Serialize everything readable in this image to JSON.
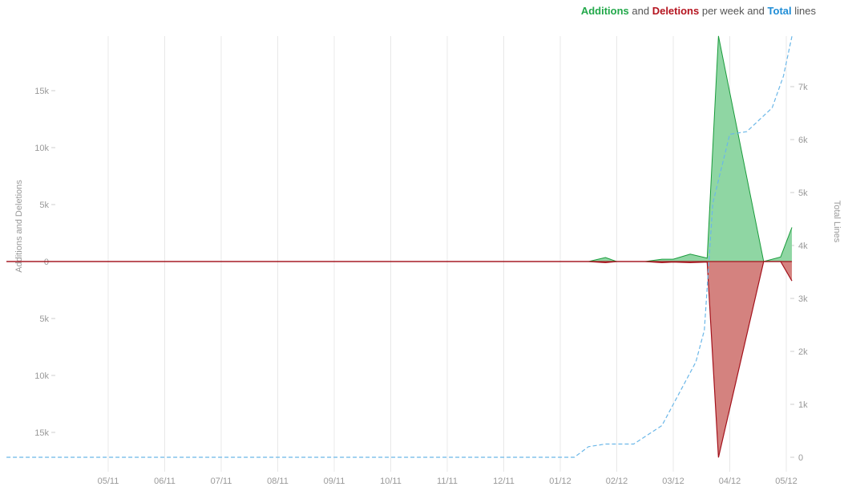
{
  "legend": {
    "additions": "Additions",
    "and1": "and",
    "deletions": "Deletions",
    "per_week": "per week and",
    "total": "Total",
    "lines": "lines"
  },
  "colors": {
    "additions_stroke": "#1a9b3c",
    "additions_fill": "#8fd6a3",
    "deletions_stroke": "#a3121c",
    "deletions_fill": "#d4827f",
    "total_line": "#6bb7e8",
    "grid": "#e8e8e8",
    "legend_additions": "#22a84a",
    "legend_deletions": "#b5141f",
    "legend_total": "#1f8dd6"
  },
  "chart_data": {
    "type": "area",
    "y_left_label": "Additions and Deletions",
    "y_right_label": "Total Lines",
    "x_tick_labels": [
      "05/11",
      "06/11",
      "07/11",
      "08/11",
      "09/11",
      "10/11",
      "11/11",
      "12/11",
      "01/12",
      "02/12",
      "03/12",
      "04/12",
      "05/12"
    ],
    "y_left_ticks": [
      {
        "value": 15000,
        "label": "15k"
      },
      {
        "value": 10000,
        "label": "10k"
      },
      {
        "value": 5000,
        "label": "5k"
      },
      {
        "value": 0,
        "label": "0"
      },
      {
        "value": -5000,
        "label": "5k"
      },
      {
        "value": -10000,
        "label": "10k"
      },
      {
        "value": -15000,
        "label": "15k"
      }
    ],
    "y_right_ticks": [
      {
        "value": 0,
        "label": "0"
      },
      {
        "value": 1000,
        "label": "1k"
      },
      {
        "value": 2000,
        "label": "2k"
      },
      {
        "value": 3000,
        "label": "3k"
      },
      {
        "value": 4000,
        "label": "4k"
      },
      {
        "value": 5000,
        "label": "5k"
      },
      {
        "value": 6000,
        "label": "6k"
      },
      {
        "value": 7000,
        "label": "7k"
      }
    ],
    "y_left_range": [
      -17300,
      19800
    ],
    "y_right_range": [
      -100,
      7950
    ],
    "x_range": [
      -1.8,
      12.1
    ],
    "series": [
      {
        "name": "Additions",
        "x": [
          -1.8,
          8.5,
          8.8,
          9.0,
          9.5,
          9.8,
          10.0,
          10.3,
          10.6,
          10.8,
          11.6,
          11.9,
          12.1
        ],
        "values": [
          0,
          0,
          350,
          0,
          0,
          200,
          200,
          650,
          300,
          19800,
          0,
          400,
          3000
        ]
      },
      {
        "name": "Deletions",
        "x": [
          -1.8,
          8.5,
          8.8,
          9.0,
          9.5,
          9.8,
          10.0,
          10.3,
          10.6,
          10.8,
          11.6,
          11.9,
          12.1
        ],
        "values": [
          0,
          0,
          -100,
          0,
          0,
          -100,
          -50,
          -100,
          -50,
          -17200,
          0,
          0,
          -1700
        ]
      },
      {
        "name": "Total",
        "x": [
          -1.8,
          8.25,
          8.5,
          8.8,
          9.3,
          9.8,
          10.1,
          10.4,
          10.55,
          10.7,
          11.0,
          11.3,
          11.55,
          11.75,
          11.95,
          12.1
        ],
        "values": [
          0,
          0,
          200,
          250,
          250,
          600,
          1200,
          1800,
          2400,
          4800,
          6100,
          6150,
          6400,
          6600,
          7200,
          7950
        ]
      }
    ]
  }
}
